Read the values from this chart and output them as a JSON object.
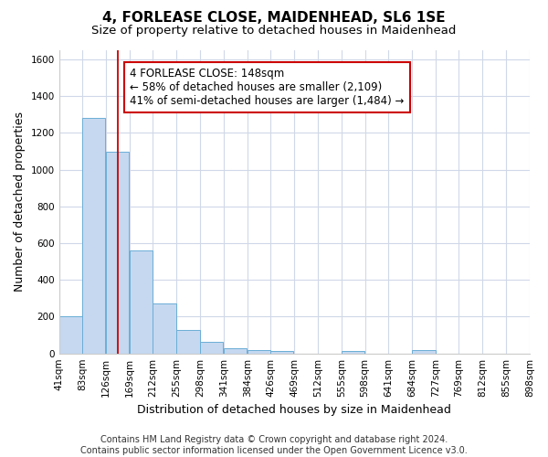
{
  "title1": "4, FORLEASE CLOSE, MAIDENHEAD, SL6 1SE",
  "title2": "Size of property relative to detached houses in Maidenhead",
  "xlabel": "Distribution of detached houses by size in Maidenhead",
  "ylabel": "Number of detached properties",
  "footnote": "Contains HM Land Registry data © Crown copyright and database right 2024.\nContains public sector information licensed under the Open Government Licence v3.0.",
  "bin_edges": [
    41,
    83,
    126,
    169,
    212,
    255,
    298,
    341,
    384,
    426,
    469,
    512,
    555,
    598,
    641,
    684,
    727,
    769,
    812,
    855,
    898
  ],
  "bar_heights": [
    200,
    1280,
    1100,
    560,
    270,
    130,
    65,
    30,
    20,
    15,
    0,
    0,
    15,
    0,
    0,
    20,
    0,
    0,
    0,
    0
  ],
  "bar_color": "#c5d8f0",
  "bar_edge_color": "#6baed6",
  "property_size": 148,
  "red_line_color": "#cc0000",
  "annotation_line1": "4 FORLEASE CLOSE: 148sqm",
  "annotation_line2": "← 58% of detached houses are smaller (2,109)",
  "annotation_line3": "41% of semi-detached houses are larger (1,484) →",
  "annotation_box_facecolor": "#ffffff",
  "annotation_box_edgecolor": "#cc0000",
  "ylim": [
    0,
    1650
  ],
  "yticks": [
    0,
    200,
    400,
    600,
    800,
    1000,
    1200,
    1400,
    1600
  ],
  "fig_background": "#ffffff",
  "plot_background": "#ffffff",
  "grid_color": "#d0d8e8",
  "title1_fontsize": 11,
  "title2_fontsize": 9.5,
  "annotation_fontsize": 8.5,
  "xlabel_fontsize": 9,
  "ylabel_fontsize": 9,
  "tick_fontsize": 7.5,
  "footnote_fontsize": 7
}
